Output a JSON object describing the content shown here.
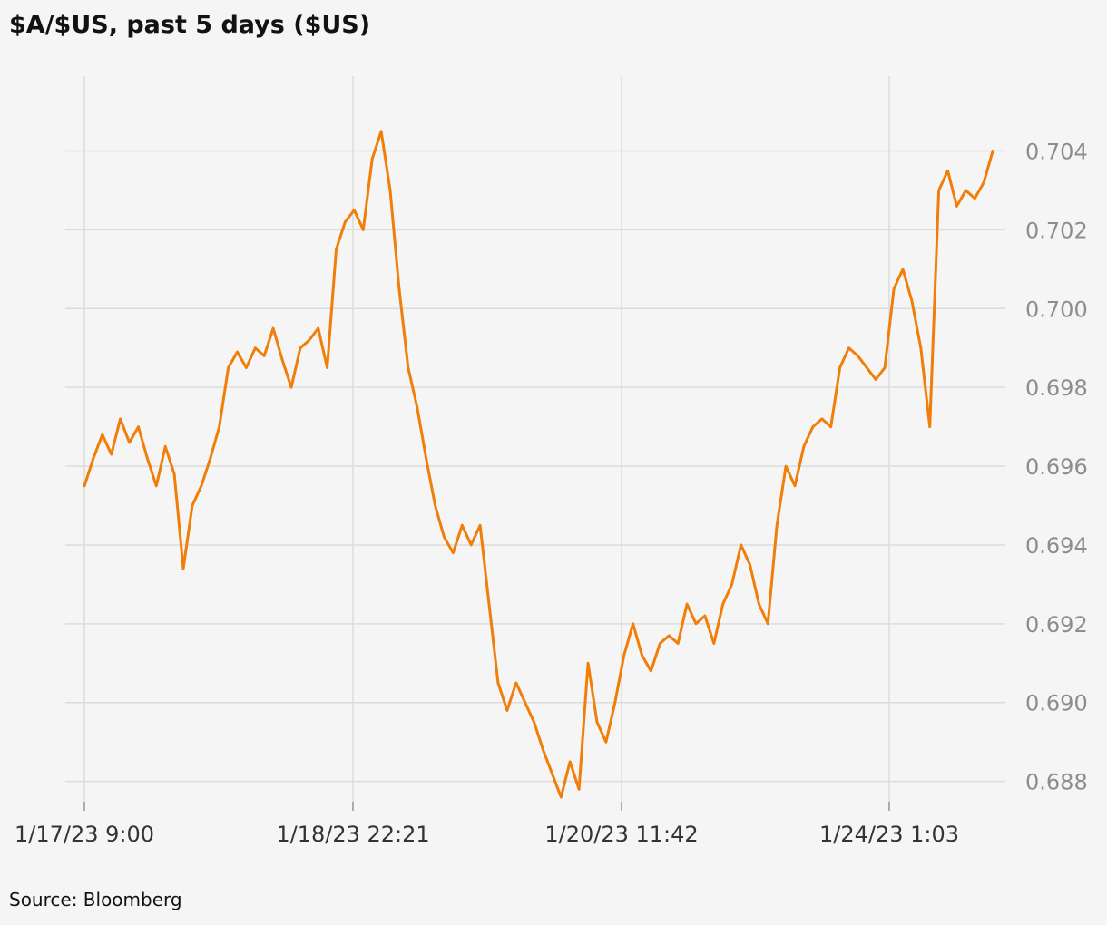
{
  "chart_data": {
    "type": "line",
    "title": "$A/$US, past 5 days ($US)",
    "source": "Source: Bloomberg",
    "xlabel": "",
    "ylabel": "",
    "ylim": [
      0.6873,
      0.7059
    ],
    "y_ticks": [
      "0.704",
      "0.702",
      "0.700",
      "0.698",
      "0.696",
      "0.694",
      "0.692",
      "0.690",
      "0.688"
    ],
    "x_ticks": [
      "1/17/23 9:00",
      "1/18/23 22:21",
      "1/20/23 11:42",
      "1/24/23 1:03"
    ],
    "x_range": [
      0,
      102
    ],
    "grid": true,
    "line_color": "#f07e09",
    "series": [
      {
        "x": [
          0,
          1,
          2,
          3,
          4,
          5,
          6,
          7,
          8,
          9,
          10,
          11,
          12,
          13,
          14,
          15,
          16,
          17,
          18,
          19,
          20,
          21,
          22,
          23,
          24,
          25,
          26,
          27,
          28,
          29,
          30,
          31,
          32,
          33,
          34,
          35,
          36,
          37,
          38,
          39,
          40,
          41,
          42,
          43,
          44,
          45,
          46,
          47,
          48,
          49,
          50,
          51,
          52,
          53,
          54,
          55,
          56,
          57,
          58,
          59,
          60,
          61,
          62,
          63,
          64,
          65,
          66,
          67,
          68,
          69,
          70,
          71,
          72,
          73,
          74,
          75,
          76,
          77,
          78,
          79,
          80,
          81,
          82,
          83,
          84,
          85,
          86,
          87,
          88,
          89,
          90,
          91,
          92,
          93,
          94,
          95,
          96,
          97,
          98,
          99,
          100,
          101
        ],
        "y": [
          0.6955,
          0.6962,
          0.6968,
          0.6963,
          0.6972,
          0.6966,
          0.697,
          0.6962,
          0.6955,
          0.6965,
          0.6958,
          0.6934,
          0.695,
          0.6955,
          0.6962,
          0.697,
          0.6985,
          0.6989,
          0.6985,
          0.699,
          0.6988,
          0.6995,
          0.6987,
          0.698,
          0.699,
          0.6992,
          0.6995,
          0.6985,
          0.7015,
          0.7022,
          0.7025,
          0.702,
          0.7038,
          0.7045,
          0.703,
          0.7005,
          0.6985,
          0.6975,
          0.6962,
          0.695,
          0.6942,
          0.6938,
          0.6945,
          0.694,
          0.6945,
          0.6925,
          0.6905,
          0.6898,
          0.6905,
          0.69,
          0.6895,
          0.6888,
          0.6882,
          0.6876,
          0.6885,
          0.6878,
          0.691,
          0.6895,
          0.689,
          0.69,
          0.6912,
          0.692,
          0.6912,
          0.6908,
          0.6915,
          0.6917,
          0.6915,
          0.6925,
          0.692,
          0.6922,
          0.6915,
          0.6925,
          0.693,
          0.694,
          0.6935,
          0.6925,
          0.692,
          0.6945,
          0.696,
          0.6955,
          0.6965,
          0.697,
          0.6972,
          0.697,
          0.6985,
          0.699,
          0.6988,
          0.6985,
          0.6982,
          0.6985,
          0.7005,
          0.701,
          0.7002,
          0.699,
          0.697,
          0.703,
          0.7035,
          0.7026,
          0.703,
          0.7028,
          0.7032,
          0.704
        ]
      }
    ]
  }
}
